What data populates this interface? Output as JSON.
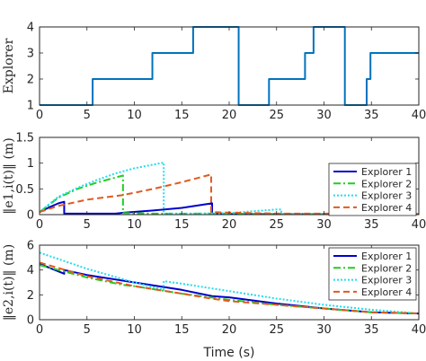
{
  "chart_data": [
    {
      "type": "line",
      "ylabel": "Explorer",
      "xlabel": "",
      "xlim": [
        0,
        40
      ],
      "ylim": [
        1,
        4
      ],
      "xticks": [
        0,
        5,
        10,
        15,
        20,
        25,
        30,
        35,
        40
      ],
      "yticks": [
        1,
        2,
        3,
        4
      ],
      "grid": false,
      "legend": "",
      "series": [
        {
          "color": "#0072BD",
          "dash": "",
          "width": 2,
          "x": [
            0,
            5.6,
            5.6,
            11.9,
            11.9,
            16.2,
            16.2,
            21.0,
            21.0,
            24.2,
            24.2,
            28.0,
            28.0,
            28.9,
            28.9,
            32.2,
            32.2,
            34.5,
            34.5,
            34.9,
            34.9,
            40
          ],
          "y": [
            1,
            1,
            2,
            2,
            3,
            3,
            4,
            4,
            1,
            1,
            2,
            2,
            3,
            3,
            4,
            4,
            1,
            1,
            2,
            2,
            3,
            3
          ]
        }
      ]
    },
    {
      "type": "line",
      "ylabel": "‖e1,i(t)‖ (m)",
      "xlabel": "",
      "xlim": [
        0,
        40
      ],
      "ylim": [
        0,
        1.5
      ],
      "xticks": [
        0,
        5,
        10,
        15,
        20,
        25,
        30,
        35,
        40
      ],
      "yticks": [
        0,
        0.5,
        1,
        1.5
      ],
      "grid": false,
      "legend": "top-right",
      "series": [
        {
          "name": "Explorer 1",
          "color": "#0000CC",
          "dash": "",
          "width": 2,
          "x": [
            0,
            1,
            2,
            2.6,
            2.6,
            5,
            8,
            9,
            12,
            15,
            18.2,
            18.2,
            20,
            25,
            30,
            35,
            40
          ],
          "y": [
            0.05,
            0.14,
            0.22,
            0.25,
            0.02,
            0.02,
            0.02,
            0.04,
            0.08,
            0.13,
            0.22,
            0.02,
            0.01,
            0.01,
            0.01,
            0.01,
            0.01
          ]
        },
        {
          "name": "Explorer 2",
          "color": "#22CC22",
          "dash": "8,3,2,3",
          "width": 2,
          "x": [
            0,
            2,
            4,
            6,
            8.8,
            8.8,
            12,
            15,
            18,
            20,
            25,
            30,
            35,
            40
          ],
          "y": [
            0.05,
            0.33,
            0.5,
            0.62,
            0.76,
            0.03,
            0.02,
            0.02,
            0.02,
            0.02,
            0.01,
            0.01,
            0.01,
            0.01
          ]
        },
        {
          "name": "Explorer 3",
          "color": "#22DDEE",
          "dash": "2,2",
          "width": 2,
          "x": [
            0,
            2,
            4,
            6,
            8,
            10,
            13.1,
            13.1,
            16,
            20,
            25,
            25.5,
            25.5,
            30,
            35,
            40
          ],
          "y": [
            0.05,
            0.35,
            0.52,
            0.67,
            0.8,
            0.9,
            1.01,
            0.02,
            0.02,
            0.03,
            0.1,
            0.1,
            0.01,
            0.01,
            0.01,
            0.01
          ]
        },
        {
          "name": "Explorer 4",
          "color": "#E05A1E",
          "dash": "7,4",
          "width": 2,
          "x": [
            0,
            2,
            5,
            8.8,
            8.8,
            12,
            15,
            18.1,
            18.1,
            20,
            25,
            30,
            35,
            40
          ],
          "y": [
            0.05,
            0.17,
            0.29,
            0.38,
            0.38,
            0.5,
            0.63,
            0.78,
            0.05,
            0.04,
            0.02,
            0.02,
            0.01,
            0.01
          ]
        }
      ]
    },
    {
      "type": "line",
      "ylabel": "‖e2,i(t)‖ (m)",
      "xlabel": "Time (s)",
      "xlim": [
        0,
        40
      ],
      "ylim": [
        0,
        6
      ],
      "xticks": [
        0,
        5,
        10,
        15,
        20,
        25,
        30,
        35,
        40
      ],
      "yticks": [
        0,
        2,
        4,
        6
      ],
      "grid": false,
      "legend": "top-right",
      "series": [
        {
          "name": "Explorer 1",
          "color": "#0000CC",
          "dash": "",
          "width": 2,
          "x": [
            0,
            2.6,
            2.6,
            5,
            10,
            15,
            18.2,
            20,
            25,
            30,
            35,
            40
          ],
          "y": [
            4.5,
            3.7,
            4.0,
            3.6,
            3.0,
            2.4,
            1.9,
            1.8,
            1.3,
            0.9,
            0.6,
            0.5
          ]
        },
        {
          "name": "Explorer 2",
          "color": "#22CC22",
          "dash": "8,3,2,3",
          "width": 2,
          "x": [
            0,
            5,
            8.8,
            10,
            15,
            20,
            25,
            30,
            35,
            40
          ],
          "y": [
            4.4,
            3.4,
            2.8,
            2.7,
            2.1,
            1.6,
            1.2,
            0.9,
            0.6,
            0.5
          ]
        },
        {
          "name": "Explorer 3",
          "color": "#22DDEE",
          "dash": "2,2",
          "width": 2,
          "x": [
            0,
            5,
            10,
            13.1,
            13.1,
            15,
            20,
            25,
            30,
            35,
            40
          ],
          "y": [
            5.4,
            4.1,
            3.0,
            2.4,
            3.1,
            2.9,
            2.3,
            1.7,
            1.2,
            0.8,
            0.5
          ]
        },
        {
          "name": "Explorer 4",
          "color": "#E05A1E",
          "dash": "7,4",
          "width": 2,
          "x": [
            0,
            5,
            10,
            15,
            18.1,
            20,
            25,
            30,
            35,
            40
          ],
          "y": [
            4.6,
            3.5,
            2.7,
            2.1,
            1.7,
            1.5,
            1.2,
            0.9,
            0.6,
            0.5
          ]
        }
      ]
    }
  ]
}
